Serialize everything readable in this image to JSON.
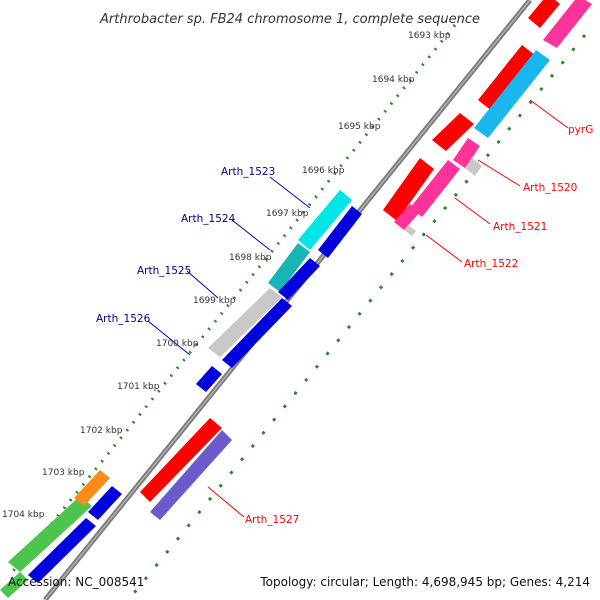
{
  "title": "Arthrobacter sp. FB24 chromosome 1, complete sequence",
  "footer": {
    "accession": "Accession: NC_008541",
    "topology": "Topology: circular; Length: 4,698,945 bp; Genes: 4,214"
  },
  "kbp_labels": [
    "1693 kbp",
    "1694 kbp",
    "1695 kbp",
    "1696 kbp",
    "1697 kbp",
    "1698 kbp",
    "1699 kbp",
    "1700 kbp",
    "1701 kbp",
    "1702 kbp",
    "1703 kbp",
    "1704 kbp"
  ],
  "gene_labels_left": [
    "Arth_1523",
    "Arth_1524",
    "Arth_1525",
    "Arth_1526"
  ],
  "gene_labels_right": [
    "pyrG",
    "Arth_1520",
    "Arth_1521",
    "Arth_1522",
    "Arth_1527"
  ],
  "colors": {
    "backbone": "#808080",
    "tick_dots": "#2a8a2a",
    "label_blue": "#00008b",
    "label_red": "#ff0000",
    "red_gene": "#ff0000",
    "pink_gene": "#ff3399",
    "sky_gene": "#19b6f0",
    "cyan_gene": "#00e5e5",
    "teal_gene": "#19b4b4",
    "gray_gene": "#c8c8c8",
    "blue_gene": "#0000dd",
    "purple_gene": "#6a5acd",
    "green_gene": "#4dc44d",
    "orange_gene": "#ff8c1a"
  }
}
